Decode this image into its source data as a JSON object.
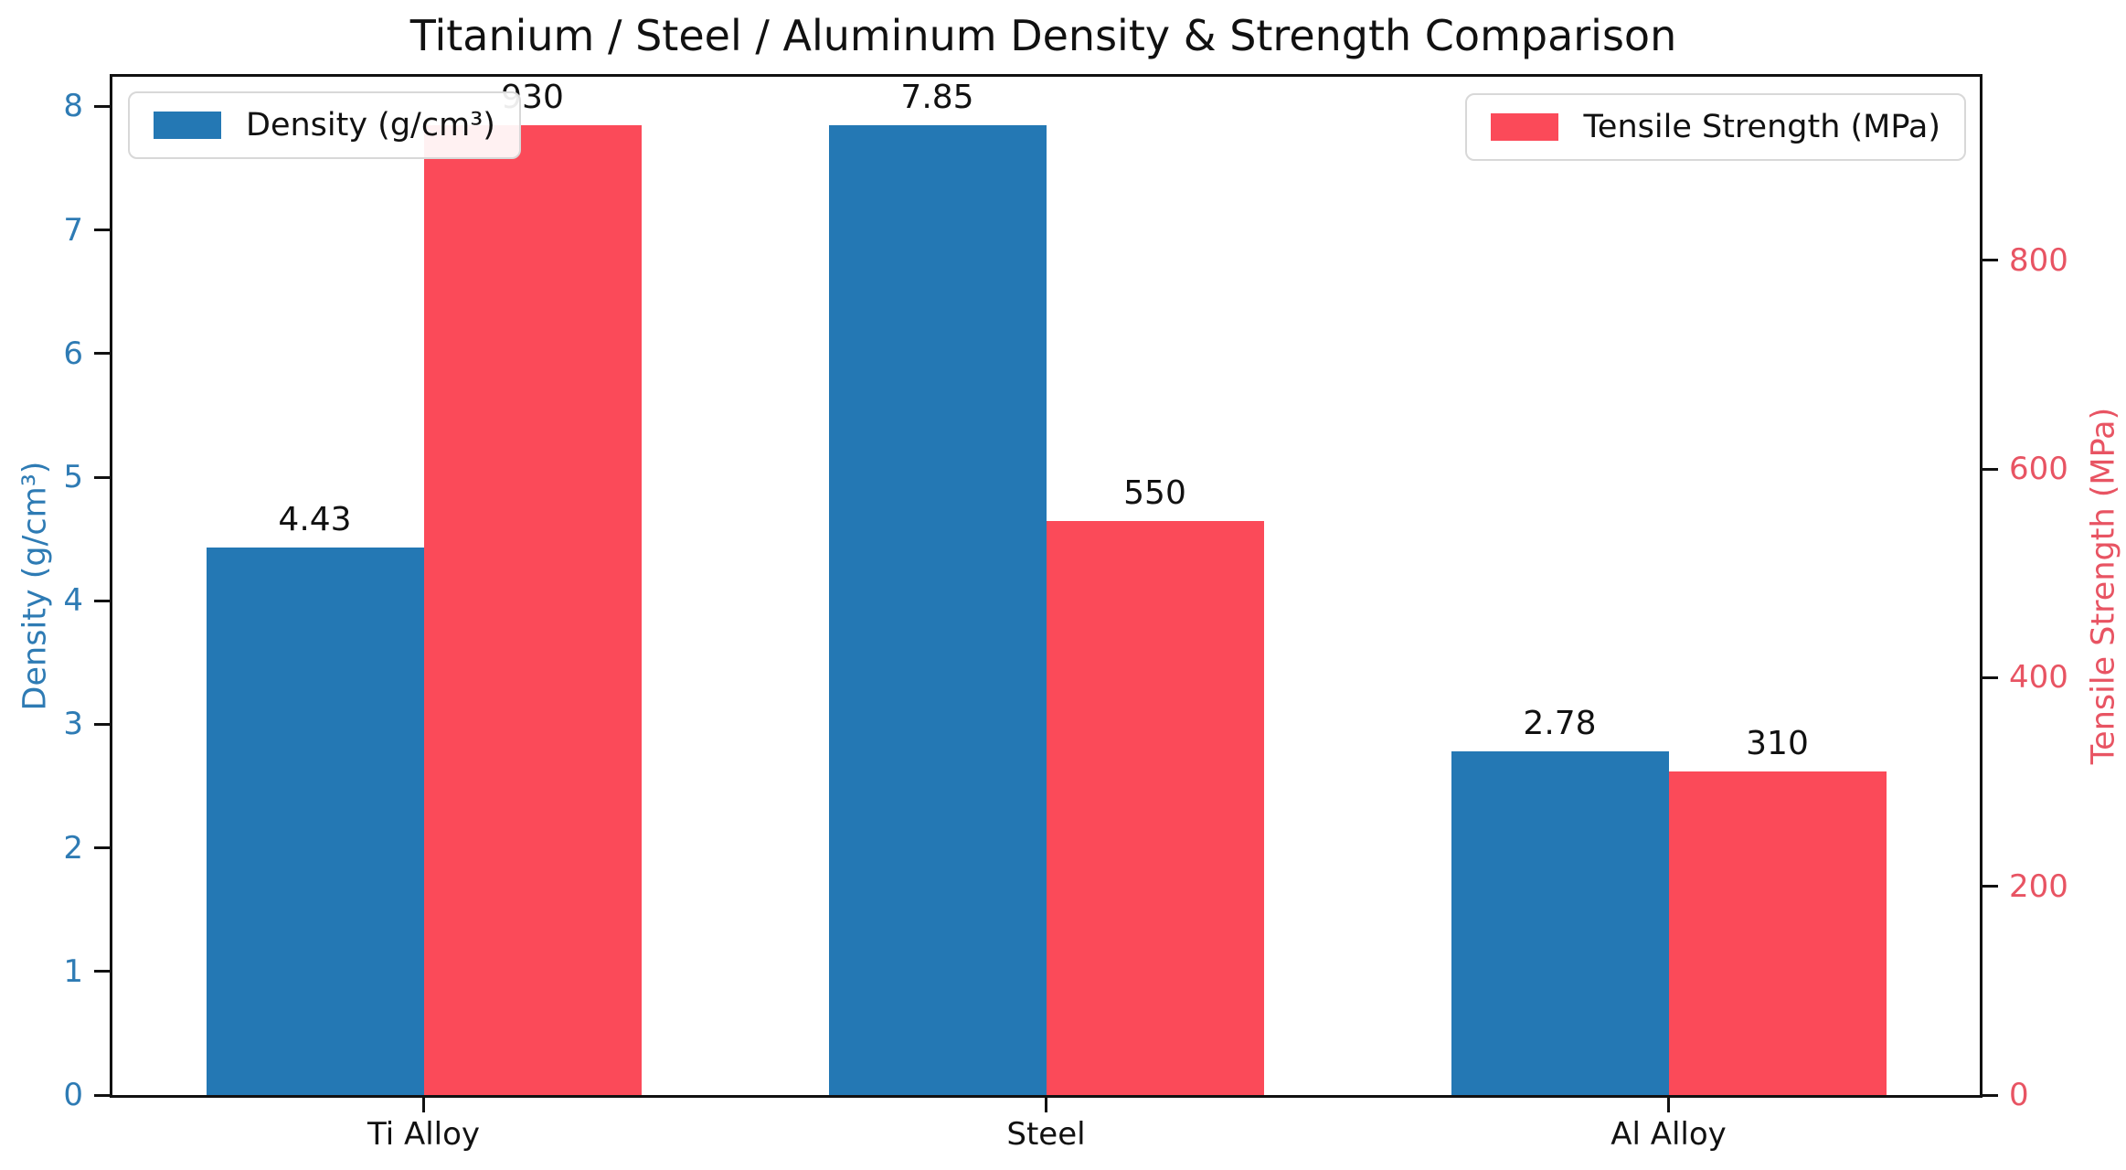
{
  "header": {
    "title": "Titanium / Steel / Aluminum Density & Strength Comparison"
  },
  "colors": {
    "density_bar": "#2478b4",
    "strength_bar": "#fb4a59",
    "left_axis_text": "#2e7bb4",
    "right_axis_text": "#e85463",
    "spine": "#111111",
    "legend_border": "#d8d8d8"
  },
  "chart_data": {
    "type": "bar",
    "title": "Titanium / Steel / Aluminum Density & Strength Comparison",
    "categories": [
      "Ti Alloy",
      "Steel",
      "Al Alloy"
    ],
    "series": [
      {
        "name": "Density (g/cm³)",
        "axis": "left",
        "color": "#2478b4",
        "values": [
          4.43,
          7.85,
          2.78
        ],
        "value_labels": [
          "4.43",
          "7.85",
          "2.78"
        ]
      },
      {
        "name": "Tensile Strength (MPa)",
        "axis": "right",
        "color": "#fb4a59",
        "values": [
          930,
          550,
          310
        ],
        "value_labels": [
          "930",
          "550",
          "310"
        ]
      }
    ],
    "ylabel_left": "Density (g/cm³)",
    "ylabel_right": "Tensile Strength (MPa)",
    "left_ticks": [
      0,
      1,
      2,
      3,
      4,
      5,
      6,
      7,
      8
    ],
    "right_ticks": [
      0,
      200,
      400,
      600,
      800
    ],
    "ylim_left": [
      0,
      8.24
    ],
    "ylim_right": [
      0,
      976
    ],
    "grid": false,
    "legend_positions": [
      "upper left",
      "upper right"
    ]
  }
}
